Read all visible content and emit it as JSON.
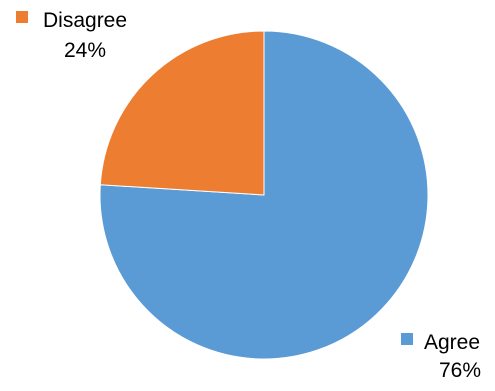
{
  "chart_data": {
    "type": "pie",
    "slices": [
      {
        "label": "Agree",
        "value": 76,
        "value_text": "76%",
        "color": "#5b9bd5"
      },
      {
        "label": "Disagree",
        "value": 24,
        "value_text": "24%",
        "color": "#ed7d31"
      }
    ],
    "start_angle_deg": 0,
    "direction": "clockwise"
  }
}
